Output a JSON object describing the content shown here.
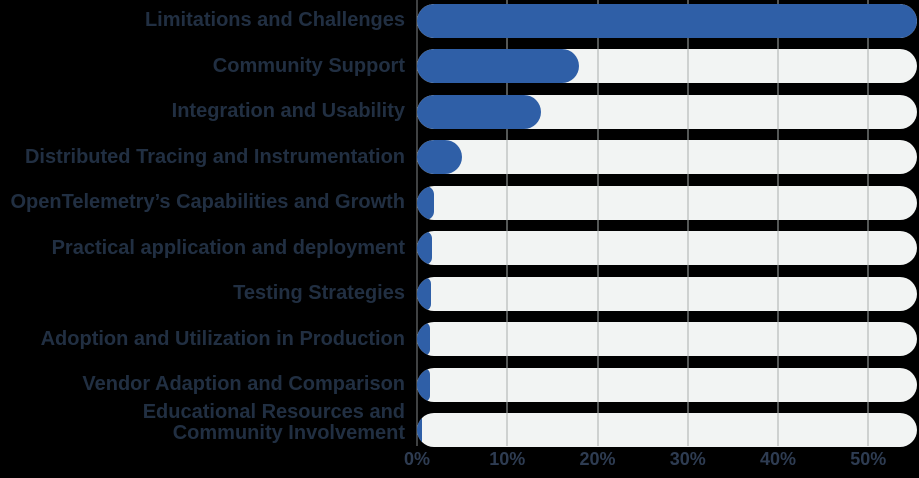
{
  "chart_data": {
    "type": "bar",
    "orientation": "horizontal",
    "title": "",
    "xlabel": "",
    "ylabel": "",
    "xlim": [
      0,
      55.4
    ],
    "grid": "vertical",
    "legend": "none",
    "categories": [
      "Limitations and Challenges",
      "Community Support",
      "Integration and Usability",
      "Distributed Tracing and Instrumentation",
      "OpenTelemetry’s Capabilities and Growth",
      "Practical application and deployment",
      "Testing Strategies",
      "Adoption and Utilization in Production",
      "Vendor Adaption and Comparison",
      "Educational Resources and\nCommunity Involvement"
    ],
    "values": [
      55.4,
      18,
      13.7,
      5,
      1.9,
      1.7,
      1.6,
      1.4,
      1.4,
      0.5
    ],
    "x_ticks": [
      {
        "value": 0,
        "label": "0%"
      },
      {
        "value": 10,
        "label": "10%"
      },
      {
        "value": 20,
        "label": "20%"
      },
      {
        "value": 30,
        "label": "30%"
      },
      {
        "value": 40,
        "label": "40%"
      },
      {
        "value": 50,
        "label": "50%"
      }
    ],
    "colors": {
      "background": "#000000",
      "bar_fill": "#2f5fa7",
      "bar_track": "#f2f4f3",
      "gridline": "#a9aeac",
      "axis_line": "#7f8486",
      "category_label": "#212f42",
      "tick_label": "#2e3c52"
    }
  }
}
